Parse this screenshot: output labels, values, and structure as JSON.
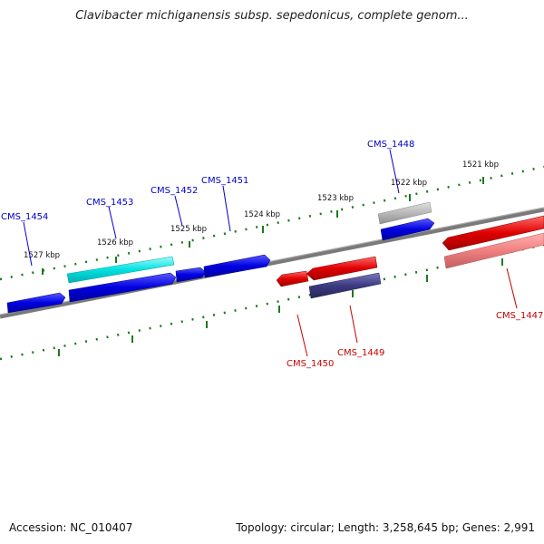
{
  "title": "Clavibacter michiganensis subsp. sepedonicus, complete genom...",
  "footer": {
    "accession": "Accession: NC_010407",
    "summary": "Topology: circular; Length: 3,258,645 bp; Genes: 2,991"
  },
  "colors": {
    "backbone": "#808080",
    "forward_strand": "#0000e0",
    "reverse_strand": "#e00000",
    "highlight_cyan": "#00e0e0",
    "highlight_gray": "#b0b0b0",
    "highlight_purple": "#3c3a80",
    "highlight_pink": "#f08080",
    "tick": "#1a7a1a",
    "forward_label": "#0000cc",
    "reverse_label": "#cc0000"
  },
  "scale_labels": [
    "1527 kbp",
    "1526 kbp",
    "1525 kbp",
    "1524 kbp",
    "1523 kbp",
    "1522 kbp",
    "1521 kbp"
  ],
  "gene_labels": {
    "forward": [
      "CMS_1454",
      "CMS_1453",
      "CMS_1452",
      "CMS_1451",
      "CMS_1448"
    ],
    "reverse": [
      "CMS_1450",
      "CMS_1449",
      "CMS_1447"
    ]
  }
}
